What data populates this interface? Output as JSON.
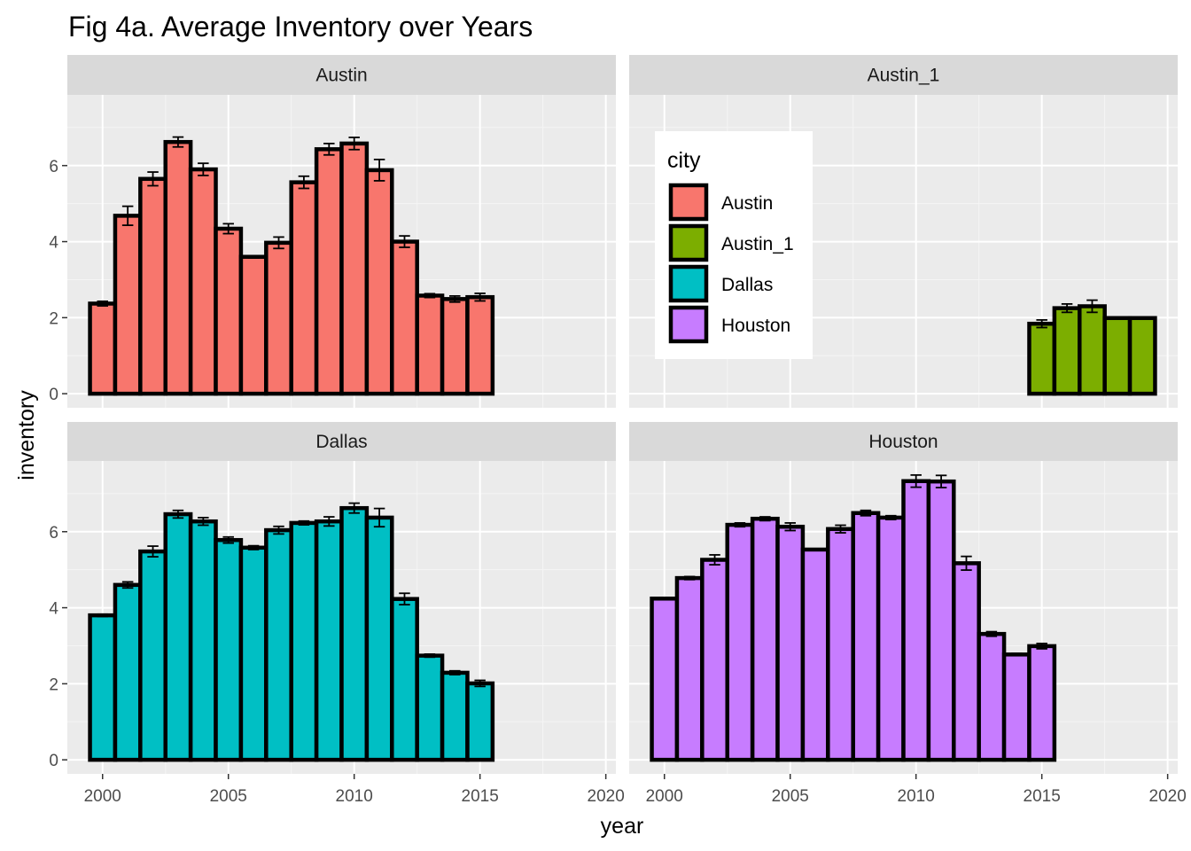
{
  "chart_data": {
    "type": "bar",
    "title": "Fig 4a. Average Inventory over Years",
    "xlabel": "year",
    "ylabel": "inventory",
    "xlim": [
      1998.6,
      2020.4
    ],
    "ylim": [
      -0.37,
      7.86
    ],
    "x_ticks": [
      2000,
      2005,
      2010,
      2015,
      2020
    ],
    "x_tick_labels": [
      "2000",
      "2005",
      "2010",
      "2015",
      "2020"
    ],
    "y_ticks": [
      0,
      2,
      4,
      6
    ],
    "y_tick_labels": [
      "0",
      "2",
      "4",
      "6"
    ],
    "grid": true,
    "legend": {
      "title": "city",
      "position": "inside Austin_1 panel, top-left",
      "entries": [
        {
          "label": "Austin",
          "color": "#F8766D"
        },
        {
          "label": "Austin_1",
          "color": "#7CAE00"
        },
        {
          "label": "Dallas",
          "color": "#00BFC4"
        },
        {
          "label": "Houston",
          "color": "#C77CFF"
        }
      ]
    },
    "panels": [
      {
        "name": "Austin",
        "color": "#F8766D",
        "x": [
          2000,
          2001,
          2002,
          2003,
          2004,
          2005,
          2006,
          2007,
          2008,
          2009,
          2010,
          2011,
          2012,
          2013,
          2014,
          2015
        ],
        "values": [
          2.37,
          4.68,
          5.65,
          6.62,
          5.9,
          4.34,
          3.6,
          3.97,
          5.56,
          6.43,
          6.58,
          5.88,
          4.0,
          2.58,
          2.49,
          2.54
        ],
        "errors": [
          0.06,
          0.25,
          0.18,
          0.13,
          0.16,
          0.13,
          0.03,
          0.15,
          0.16,
          0.15,
          0.16,
          0.28,
          0.15,
          0.05,
          0.08,
          0.1
        ]
      },
      {
        "name": "Austin_1",
        "color": "#7CAE00",
        "x": [
          2015,
          2016,
          2017,
          2018,
          2019
        ],
        "values": [
          1.84,
          2.25,
          2.3,
          1.99,
          1.99
        ],
        "errors": [
          0.1,
          0.11,
          0.16,
          0.0,
          0.0
        ]
      },
      {
        "name": "Dallas",
        "color": "#00BFC4",
        "x": [
          2000,
          2001,
          2002,
          2003,
          2004,
          2005,
          2006,
          2007,
          2008,
          2009,
          2010,
          2011,
          2012,
          2013,
          2014,
          2015
        ],
        "values": [
          3.8,
          4.6,
          5.48,
          6.46,
          6.27,
          5.78,
          5.58,
          6.04,
          6.23,
          6.27,
          6.62,
          6.37,
          4.23,
          2.74,
          2.29,
          2.01
        ],
        "errors": [
          0.03,
          0.08,
          0.14,
          0.1,
          0.1,
          0.08,
          0.05,
          0.1,
          0.05,
          0.12,
          0.13,
          0.24,
          0.15,
          0.04,
          0.05,
          0.08
        ]
      },
      {
        "name": "Houston",
        "color": "#C77CFF",
        "x": [
          2000,
          2001,
          2002,
          2003,
          2004,
          2005,
          2006,
          2007,
          2008,
          2009,
          2010,
          2011,
          2012,
          2013,
          2014,
          2015
        ],
        "values": [
          4.24,
          4.78,
          5.26,
          6.18,
          6.34,
          6.13,
          5.53,
          6.07,
          6.49,
          6.37,
          7.33,
          7.32,
          5.17,
          3.31,
          2.77,
          2.99
        ],
        "errors": [
          0.03,
          0.04,
          0.13,
          0.05,
          0.05,
          0.1,
          0.02,
          0.1,
          0.07,
          0.05,
          0.16,
          0.16,
          0.18,
          0.06,
          0.03,
          0.07
        ]
      }
    ]
  }
}
